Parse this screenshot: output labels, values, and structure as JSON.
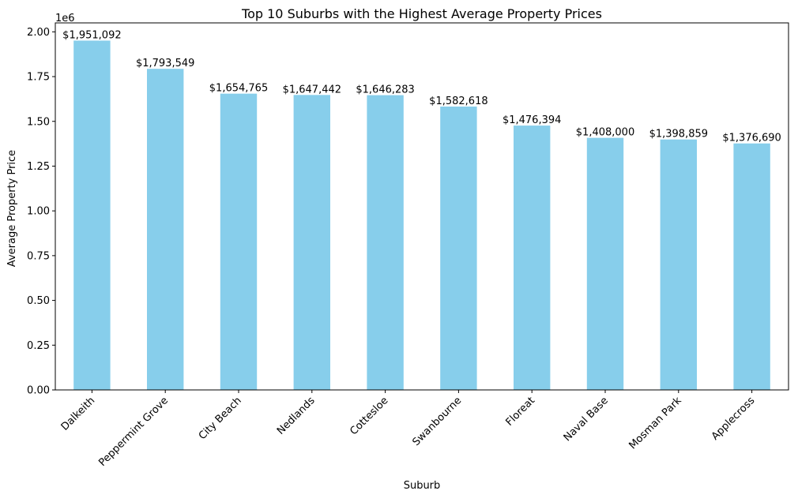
{
  "chart_data": {
    "type": "bar",
    "title": "Top 10 Suburbs with the Highest Average Property Prices",
    "xlabel": "Suburb",
    "ylabel": "Average Property Price",
    "y_scale_note": "1e6",
    "ylim": [
      0,
      2050000
    ],
    "yticks": [
      0,
      250000,
      500000,
      750000,
      1000000,
      1250000,
      1500000,
      1750000,
      2000000
    ],
    "ytick_labels": [
      "0.00",
      "0.25",
      "0.50",
      "0.75",
      "1.00",
      "1.25",
      "1.50",
      "1.75",
      "2.00"
    ],
    "bar_color": "#87ceeb",
    "grid": false,
    "categories": [
      "Dalkeith",
      "Peppermint Grove",
      "City Beach",
      "Nedlands",
      "Cottesloe",
      "Swanbourne",
      "Floreat",
      "Naval Base",
      "Mosman Park",
      "Applecross"
    ],
    "values": [
      1951092,
      1793549,
      1654765,
      1647442,
      1646283,
      1582618,
      1476394,
      1408000,
      1398859,
      1376690
    ],
    "value_labels": [
      "$1,951,092",
      "$1,793,549",
      "$1,654,765",
      "$1,647,442",
      "$1,646,283",
      "$1,582,618",
      "$1,476,394",
      "$1,408,000",
      "$1,398,859",
      "$1,376,690"
    ]
  }
}
